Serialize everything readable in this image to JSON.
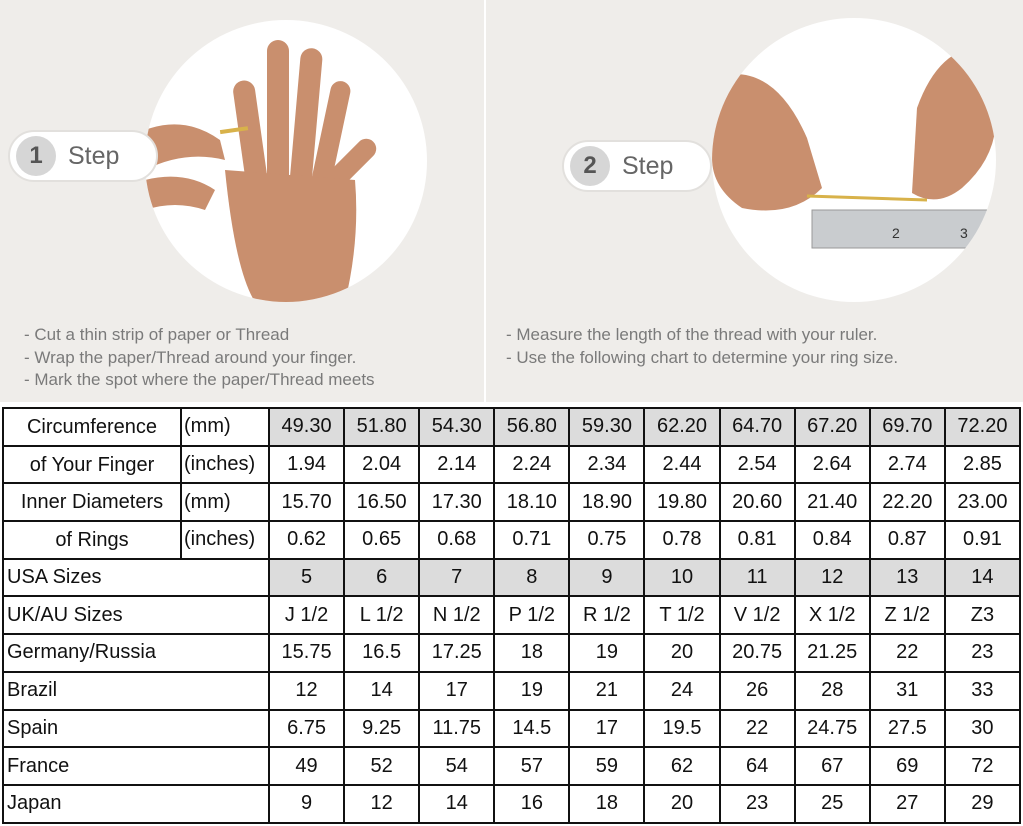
{
  "steps": [
    {
      "number": "1",
      "label": "Step",
      "instructions": [
        "- Cut a thin strip of paper or Thread",
        "- Wrap the paper/Thread around your finger.",
        "- Mark the spot where the paper/Thread meets"
      ]
    },
    {
      "number": "2",
      "label": "Step",
      "instructions": [
        "- Measure the length of the thread with your ruler.",
        "- Use the following chart to determine your ring size."
      ]
    }
  ],
  "table": {
    "circumference": {
      "label1": "Circumference",
      "label2": "of Your Finger",
      "unit_mm": "(mm)",
      "unit_in": "(inches)",
      "mm": [
        "49.30",
        "51.80",
        "54.30",
        "56.80",
        "59.30",
        "62.20",
        "64.70",
        "67.20",
        "69.70",
        "72.20"
      ],
      "inches": [
        "1.94",
        "2.04",
        "2.14",
        "2.24",
        "2.34",
        "2.44",
        "2.54",
        "2.64",
        "2.74",
        "2.85"
      ]
    },
    "diameter": {
      "label1": "Inner Diameters",
      "label2": "of Rings",
      "unit_mm": "(mm)",
      "unit_in": "(inches)",
      "mm": [
        "15.70",
        "16.50",
        "17.30",
        "18.10",
        "18.90",
        "19.80",
        "20.60",
        "21.40",
        "22.20",
        "23.00"
      ],
      "inches": [
        "0.62",
        "0.65",
        "0.68",
        "0.71",
        "0.75",
        "0.78",
        "0.81",
        "0.84",
        "0.87",
        "0.91"
      ]
    },
    "rows": [
      {
        "label": "USA Sizes",
        "values": [
          "5",
          "6",
          "7",
          "8",
          "9",
          "10",
          "11",
          "12",
          "13",
          "14"
        ],
        "gray": true
      },
      {
        "label": "UK/AU Sizes",
        "values": [
          "J 1/2",
          "L 1/2",
          "N 1/2",
          "P 1/2",
          "R 1/2",
          "T 1/2",
          "V 1/2",
          "X 1/2",
          "Z 1/2",
          "Z3"
        ]
      },
      {
        "label": "Germany/Russia",
        "values": [
          "15.75",
          "16.5",
          "17.25",
          "18",
          "19",
          "20",
          "20.75",
          "21.25",
          "22",
          "23"
        ]
      },
      {
        "label": "Brazil",
        "values": [
          "12",
          "14",
          "17",
          "19",
          "21",
          "24",
          "26",
          "28",
          "31",
          "33"
        ]
      },
      {
        "label": "Spain",
        "values": [
          "6.75",
          "9.25",
          "11.75",
          "14.5",
          "17",
          "19.5",
          "22",
          "24.75",
          "27.5",
          "30"
        ]
      },
      {
        "label": "France",
        "values": [
          "49",
          "52",
          "54",
          "57",
          "59",
          "62",
          "64",
          "67",
          "69",
          "72"
        ]
      },
      {
        "label": "Japan",
        "values": [
          "9",
          "12",
          "14",
          "16",
          "18",
          "20",
          "23",
          "25",
          "27",
          "29"
        ]
      }
    ]
  },
  "colors": {
    "panel_bg": "#efedea",
    "header_gray": "#dcdcdc",
    "skin": "#c98f6e"
  }
}
